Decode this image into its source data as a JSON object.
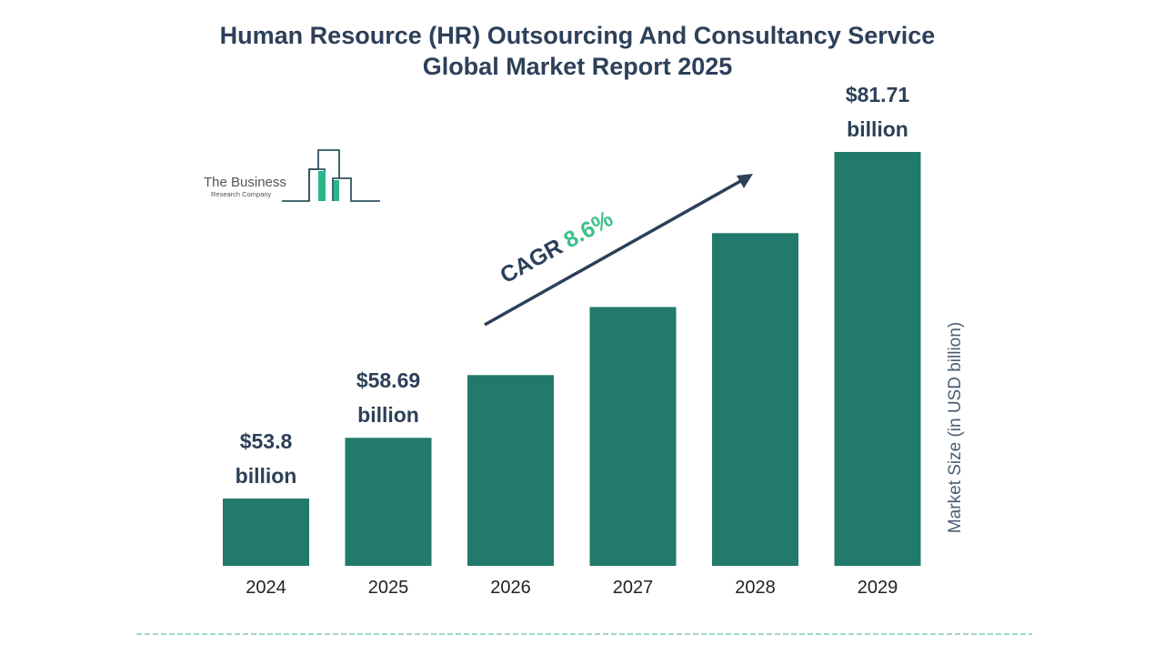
{
  "chart_data": {
    "type": "bar",
    "title": "Human Resource (HR) Outsourcing And Consultancy Service Global Market Report 2025",
    "categories": [
      "2024",
      "2025",
      "2026",
      "2027",
      "2028",
      "2029"
    ],
    "values": [
      53.8,
      58.69,
      63.74,
      69.22,
      75.17,
      81.71
    ],
    "data_labels": [
      {
        "year": "2024",
        "line1": "$53.8",
        "line2": "billion"
      },
      {
        "year": "2025",
        "line1": "$58.69",
        "line2": "billion"
      },
      {
        "year": "2029",
        "line1": "$81.71",
        "line2": "billion"
      }
    ],
    "ylabel": "Market Size (in USD billion)",
    "xlabel": "",
    "annotation": {
      "label": "CAGR",
      "value": "8.6%"
    },
    "grid": false,
    "colors": {
      "bar": "#217a6b",
      "text": "#2d4059",
      "cagr": "#3dbf8a",
      "divider": "#7fc8bd"
    }
  },
  "logo": {
    "line1": "The Business",
    "line2": "Research Company"
  }
}
